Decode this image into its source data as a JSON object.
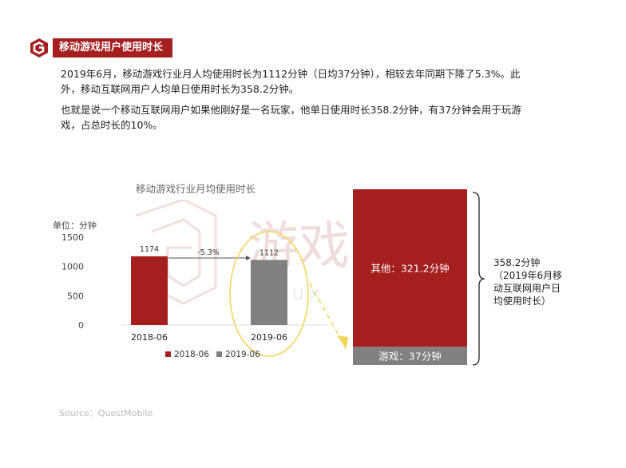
{
  "header": {
    "title": "移动游戏用户使用时长"
  },
  "paragraphs": {
    "p1_line1": "2019年6月，移动游戏行业月人均使用时长为1112分钟（日均37分钟），相较去年同期下降了5.3%。此",
    "p1_line2": "外，移动互联网用户人均单日使用时长为358.2分钟。",
    "p2_line1": "也就是说一个移动互联网用户如果他刚好是一名玩家，他单日使用时长358.2分钟，有37分钟会用于玩游",
    "p2_line2": "戏，占总时长的10%。"
  },
  "watermark": {
    "text_cn": "游戏",
    "text_en": "youx"
  },
  "source": "Source：QuestMobile",
  "colors": {
    "brand_red": "#a51f1f",
    "gray": "#808080",
    "highlight_yellow": "#f2d55c"
  },
  "chart_data": [
    {
      "type": "bar",
      "title": "移动游戏行业月均使用时长",
      "ylabel": "单位：分钟",
      "categories": [
        "2018-06",
        "2019-06"
      ],
      "values": [
        1174,
        1112
      ],
      "data_labels": [
        "1174",
        "1112"
      ],
      "series_legend": [
        "2018-06",
        "2019-06"
      ],
      "bar_colors": [
        "#a51f1f",
        "#808080"
      ],
      "ylim": [
        0,
        1500
      ],
      "yticks": [
        0,
        500,
        1000,
        1500
      ],
      "ytick_labels": [
        "0",
        "500",
        "1000",
        "1500"
      ],
      "annotation": "-5.3%",
      "legend_position": "bottom",
      "grid": false
    },
    {
      "type": "bar",
      "stacked": true,
      "segments": [
        {
          "label": "其他：321.2分钟",
          "value": 321.2,
          "color": "#a51f1f"
        },
        {
          "label": "游戏：37分钟",
          "value": 37,
          "color": "#808080"
        }
      ],
      "total": 358.2,
      "total_label_lines": [
        "358.2分钟",
        "（2019年6月移",
        "动互联网用户日",
        "均使用时长）"
      ]
    }
  ]
}
